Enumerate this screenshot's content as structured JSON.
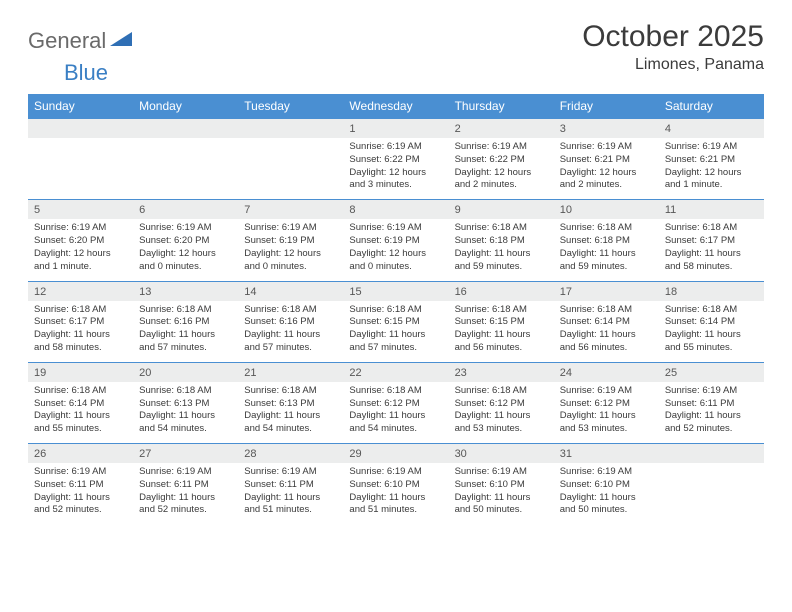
{
  "brand": {
    "part1": "General",
    "part2": "Blue"
  },
  "title": "October 2025",
  "location": "Limones, Panama",
  "colors": {
    "header_bg": "#4a8fd2",
    "header_fg": "#ffffff",
    "daynum_bg": "#eceded",
    "daynum_fg": "#575757",
    "border": "#4a8fd2",
    "text": "#3a3a3a",
    "brand_gray": "#6a6a6a",
    "brand_blue": "#3a7fc4"
  },
  "day_names": [
    "Sunday",
    "Monday",
    "Tuesday",
    "Wednesday",
    "Thursday",
    "Friday",
    "Saturday"
  ],
  "weeks": [
    [
      {
        "num": "",
        "lines": []
      },
      {
        "num": "",
        "lines": []
      },
      {
        "num": "",
        "lines": []
      },
      {
        "num": "1",
        "lines": [
          "Sunrise: 6:19 AM",
          "Sunset: 6:22 PM",
          "Daylight: 12 hours",
          "and 3 minutes."
        ]
      },
      {
        "num": "2",
        "lines": [
          "Sunrise: 6:19 AM",
          "Sunset: 6:22 PM",
          "Daylight: 12 hours",
          "and 2 minutes."
        ]
      },
      {
        "num": "3",
        "lines": [
          "Sunrise: 6:19 AM",
          "Sunset: 6:21 PM",
          "Daylight: 12 hours",
          "and 2 minutes."
        ]
      },
      {
        "num": "4",
        "lines": [
          "Sunrise: 6:19 AM",
          "Sunset: 6:21 PM",
          "Daylight: 12 hours",
          "and 1 minute."
        ]
      }
    ],
    [
      {
        "num": "5",
        "lines": [
          "Sunrise: 6:19 AM",
          "Sunset: 6:20 PM",
          "Daylight: 12 hours",
          "and 1 minute."
        ]
      },
      {
        "num": "6",
        "lines": [
          "Sunrise: 6:19 AM",
          "Sunset: 6:20 PM",
          "Daylight: 12 hours",
          "and 0 minutes."
        ]
      },
      {
        "num": "7",
        "lines": [
          "Sunrise: 6:19 AM",
          "Sunset: 6:19 PM",
          "Daylight: 12 hours",
          "and 0 minutes."
        ]
      },
      {
        "num": "8",
        "lines": [
          "Sunrise: 6:19 AM",
          "Sunset: 6:19 PM",
          "Daylight: 12 hours",
          "and 0 minutes."
        ]
      },
      {
        "num": "9",
        "lines": [
          "Sunrise: 6:18 AM",
          "Sunset: 6:18 PM",
          "Daylight: 11 hours",
          "and 59 minutes."
        ]
      },
      {
        "num": "10",
        "lines": [
          "Sunrise: 6:18 AM",
          "Sunset: 6:18 PM",
          "Daylight: 11 hours",
          "and 59 minutes."
        ]
      },
      {
        "num": "11",
        "lines": [
          "Sunrise: 6:18 AM",
          "Sunset: 6:17 PM",
          "Daylight: 11 hours",
          "and 58 minutes."
        ]
      }
    ],
    [
      {
        "num": "12",
        "lines": [
          "Sunrise: 6:18 AM",
          "Sunset: 6:17 PM",
          "Daylight: 11 hours",
          "and 58 minutes."
        ]
      },
      {
        "num": "13",
        "lines": [
          "Sunrise: 6:18 AM",
          "Sunset: 6:16 PM",
          "Daylight: 11 hours",
          "and 57 minutes."
        ]
      },
      {
        "num": "14",
        "lines": [
          "Sunrise: 6:18 AM",
          "Sunset: 6:16 PM",
          "Daylight: 11 hours",
          "and 57 minutes."
        ]
      },
      {
        "num": "15",
        "lines": [
          "Sunrise: 6:18 AM",
          "Sunset: 6:15 PM",
          "Daylight: 11 hours",
          "and 57 minutes."
        ]
      },
      {
        "num": "16",
        "lines": [
          "Sunrise: 6:18 AM",
          "Sunset: 6:15 PM",
          "Daylight: 11 hours",
          "and 56 minutes."
        ]
      },
      {
        "num": "17",
        "lines": [
          "Sunrise: 6:18 AM",
          "Sunset: 6:14 PM",
          "Daylight: 11 hours",
          "and 56 minutes."
        ]
      },
      {
        "num": "18",
        "lines": [
          "Sunrise: 6:18 AM",
          "Sunset: 6:14 PM",
          "Daylight: 11 hours",
          "and 55 minutes."
        ]
      }
    ],
    [
      {
        "num": "19",
        "lines": [
          "Sunrise: 6:18 AM",
          "Sunset: 6:14 PM",
          "Daylight: 11 hours",
          "and 55 minutes."
        ]
      },
      {
        "num": "20",
        "lines": [
          "Sunrise: 6:18 AM",
          "Sunset: 6:13 PM",
          "Daylight: 11 hours",
          "and 54 minutes."
        ]
      },
      {
        "num": "21",
        "lines": [
          "Sunrise: 6:18 AM",
          "Sunset: 6:13 PM",
          "Daylight: 11 hours",
          "and 54 minutes."
        ]
      },
      {
        "num": "22",
        "lines": [
          "Sunrise: 6:18 AM",
          "Sunset: 6:12 PM",
          "Daylight: 11 hours",
          "and 54 minutes."
        ]
      },
      {
        "num": "23",
        "lines": [
          "Sunrise: 6:18 AM",
          "Sunset: 6:12 PM",
          "Daylight: 11 hours",
          "and 53 minutes."
        ]
      },
      {
        "num": "24",
        "lines": [
          "Sunrise: 6:19 AM",
          "Sunset: 6:12 PM",
          "Daylight: 11 hours",
          "and 53 minutes."
        ]
      },
      {
        "num": "25",
        "lines": [
          "Sunrise: 6:19 AM",
          "Sunset: 6:11 PM",
          "Daylight: 11 hours",
          "and 52 minutes."
        ]
      }
    ],
    [
      {
        "num": "26",
        "lines": [
          "Sunrise: 6:19 AM",
          "Sunset: 6:11 PM",
          "Daylight: 11 hours",
          "and 52 minutes."
        ]
      },
      {
        "num": "27",
        "lines": [
          "Sunrise: 6:19 AM",
          "Sunset: 6:11 PM",
          "Daylight: 11 hours",
          "and 52 minutes."
        ]
      },
      {
        "num": "28",
        "lines": [
          "Sunrise: 6:19 AM",
          "Sunset: 6:11 PM",
          "Daylight: 11 hours",
          "and 51 minutes."
        ]
      },
      {
        "num": "29",
        "lines": [
          "Sunrise: 6:19 AM",
          "Sunset: 6:10 PM",
          "Daylight: 11 hours",
          "and 51 minutes."
        ]
      },
      {
        "num": "30",
        "lines": [
          "Sunrise: 6:19 AM",
          "Sunset: 6:10 PM",
          "Daylight: 11 hours",
          "and 50 minutes."
        ]
      },
      {
        "num": "31",
        "lines": [
          "Sunrise: 6:19 AM",
          "Sunset: 6:10 PM",
          "Daylight: 11 hours",
          "and 50 minutes."
        ]
      },
      {
        "num": "",
        "lines": []
      }
    ]
  ]
}
